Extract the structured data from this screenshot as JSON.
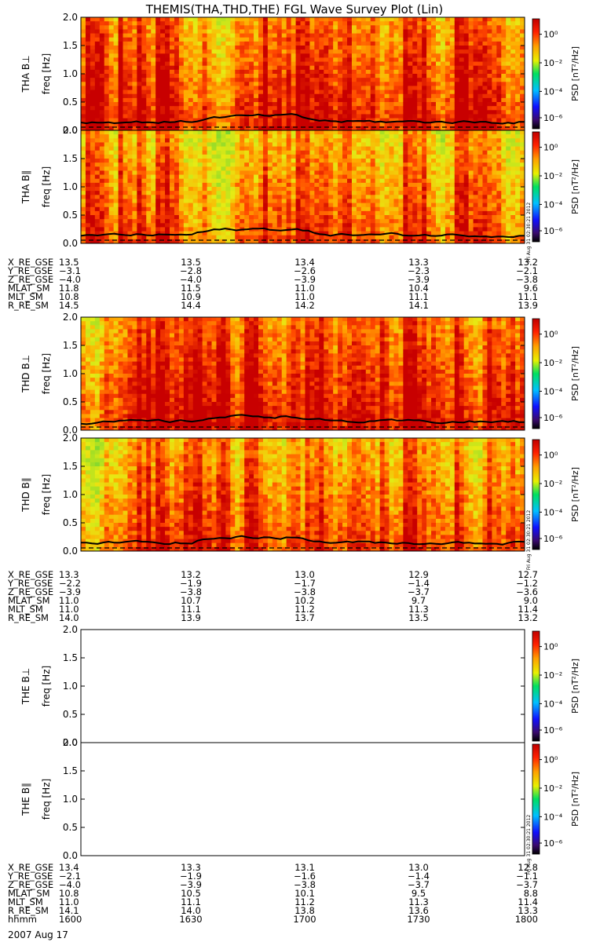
{
  "title": "THEMIS(THA,THD,THE) FGL Wave Survey Plot (Lin)",
  "stamp": "Fri Aug 31 02:30:21 2012",
  "colorbar": {
    "label": "PSD [nT²/Hz]",
    "ticks": [
      "10⁰",
      "10⁻²",
      "10⁻⁴",
      "10⁻⁶"
    ],
    "scale": "log"
  },
  "freq_ticks": [
    "0.0",
    "0.5",
    "1.0",
    "1.5",
    "2.0"
  ],
  "date_label": "2007 Aug 17",
  "chart_data": [
    {
      "type": "heatmap",
      "probe": "THA",
      "panels": [
        {
          "ylabel": "THA B⊥",
          "yunit": "freq [Hz]",
          "ylim": [
            0,
            2.0
          ],
          "has_data": true
        },
        {
          "ylabel": "THA B∥",
          "yunit": "freq [Hz]",
          "ylim": [
            0,
            2.0
          ],
          "has_data": true
        }
      ],
      "ephemeris": [
        {
          "label": "X_RE_GSE",
          "values": [
            "13.5",
            "13.5",
            "13.4",
            "13.3",
            "13.2"
          ]
        },
        {
          "label": "Y_RE_GSE",
          "values": [
            "−3.1",
            "−2.8",
            "−2.6",
            "−2.3",
            "−2.1"
          ]
        },
        {
          "label": "Z_RE_GSE",
          "values": [
            "−4.0",
            "−4.0",
            "−3.9",
            "−3.9",
            "−3.8"
          ]
        },
        {
          "label": "MLAT_SM",
          "values": [
            "11.8",
            "11.5",
            "11.0",
            "10.4",
            "9.6"
          ]
        },
        {
          "label": "MLT_SM",
          "values": [
            "10.8",
            "10.9",
            "11.0",
            "11.1",
            "11.1"
          ]
        },
        {
          "label": "R_RE_SM",
          "values": [
            "14.5",
            "14.4",
            "14.2",
            "14.1",
            "13.9"
          ]
        }
      ]
    },
    {
      "type": "heatmap",
      "probe": "THD",
      "panels": [
        {
          "ylabel": "THD B⊥",
          "yunit": "freq [Hz]",
          "ylim": [
            0,
            2.0
          ],
          "has_data": true
        },
        {
          "ylabel": "THD B∥",
          "yunit": "freq [Hz]",
          "ylim": [
            0,
            2.0
          ],
          "has_data": true
        }
      ],
      "ephemeris": [
        {
          "label": "X_RE_GSE",
          "values": [
            "13.3",
            "13.2",
            "13.0",
            "12.9",
            "12.7"
          ]
        },
        {
          "label": "Y_RE_GSE",
          "values": [
            "−2.2",
            "−1.9",
            "−1.7",
            "−1.4",
            "−1.2"
          ]
        },
        {
          "label": "Z_RE_GSE",
          "values": [
            "−3.9",
            "−3.8",
            "−3.8",
            "−3.7",
            "−3.6"
          ]
        },
        {
          "label": "MLAT_SM",
          "values": [
            "11.0",
            "10.7",
            "10.2",
            "9.7",
            "9.0"
          ]
        },
        {
          "label": "MLT_SM",
          "values": [
            "11.0",
            "11.1",
            "11.2",
            "11.3",
            "11.4"
          ]
        },
        {
          "label": "R_RE_SM",
          "values": [
            "14.0",
            "13.9",
            "13.7",
            "13.5",
            "13.2"
          ]
        }
      ]
    },
    {
      "type": "heatmap",
      "probe": "THE",
      "panels": [
        {
          "ylabel": "THE B⊥",
          "yunit": "freq [Hz]",
          "ylim": [
            0,
            2.0
          ],
          "has_data": false
        },
        {
          "ylabel": "THE B∥",
          "yunit": "freq [Hz]",
          "ylim": [
            0,
            2.0
          ],
          "has_data": false
        }
      ],
      "ephemeris": [
        {
          "label": "X_RE_GSE",
          "values": [
            "13.4",
            "13.3",
            "13.1",
            "13.0",
            "12.8"
          ]
        },
        {
          "label": "Y_RE_GSE",
          "values": [
            "−2.1",
            "−1.9",
            "−1.6",
            "−1.4",
            "−1.1"
          ]
        },
        {
          "label": "Z_RE_GSE",
          "values": [
            "−4.0",
            "−3.9",
            "−3.8",
            "−3.7",
            "−3.7"
          ]
        },
        {
          "label": "MLAT_SM",
          "values": [
            "10.8",
            "10.5",
            "10.1",
            "9.5",
            "8.8"
          ]
        },
        {
          "label": "MLT_SM",
          "values": [
            "11.0",
            "11.1",
            "11.2",
            "11.3",
            "11.4"
          ]
        },
        {
          "label": "R_RE_SM",
          "values": [
            "14.1",
            "14.0",
            "13.8",
            "13.6",
            "13.3"
          ]
        },
        {
          "label": "hhmm",
          "values": [
            "1600",
            "1630",
            "1700",
            "1730",
            "1800"
          ]
        }
      ]
    }
  ]
}
